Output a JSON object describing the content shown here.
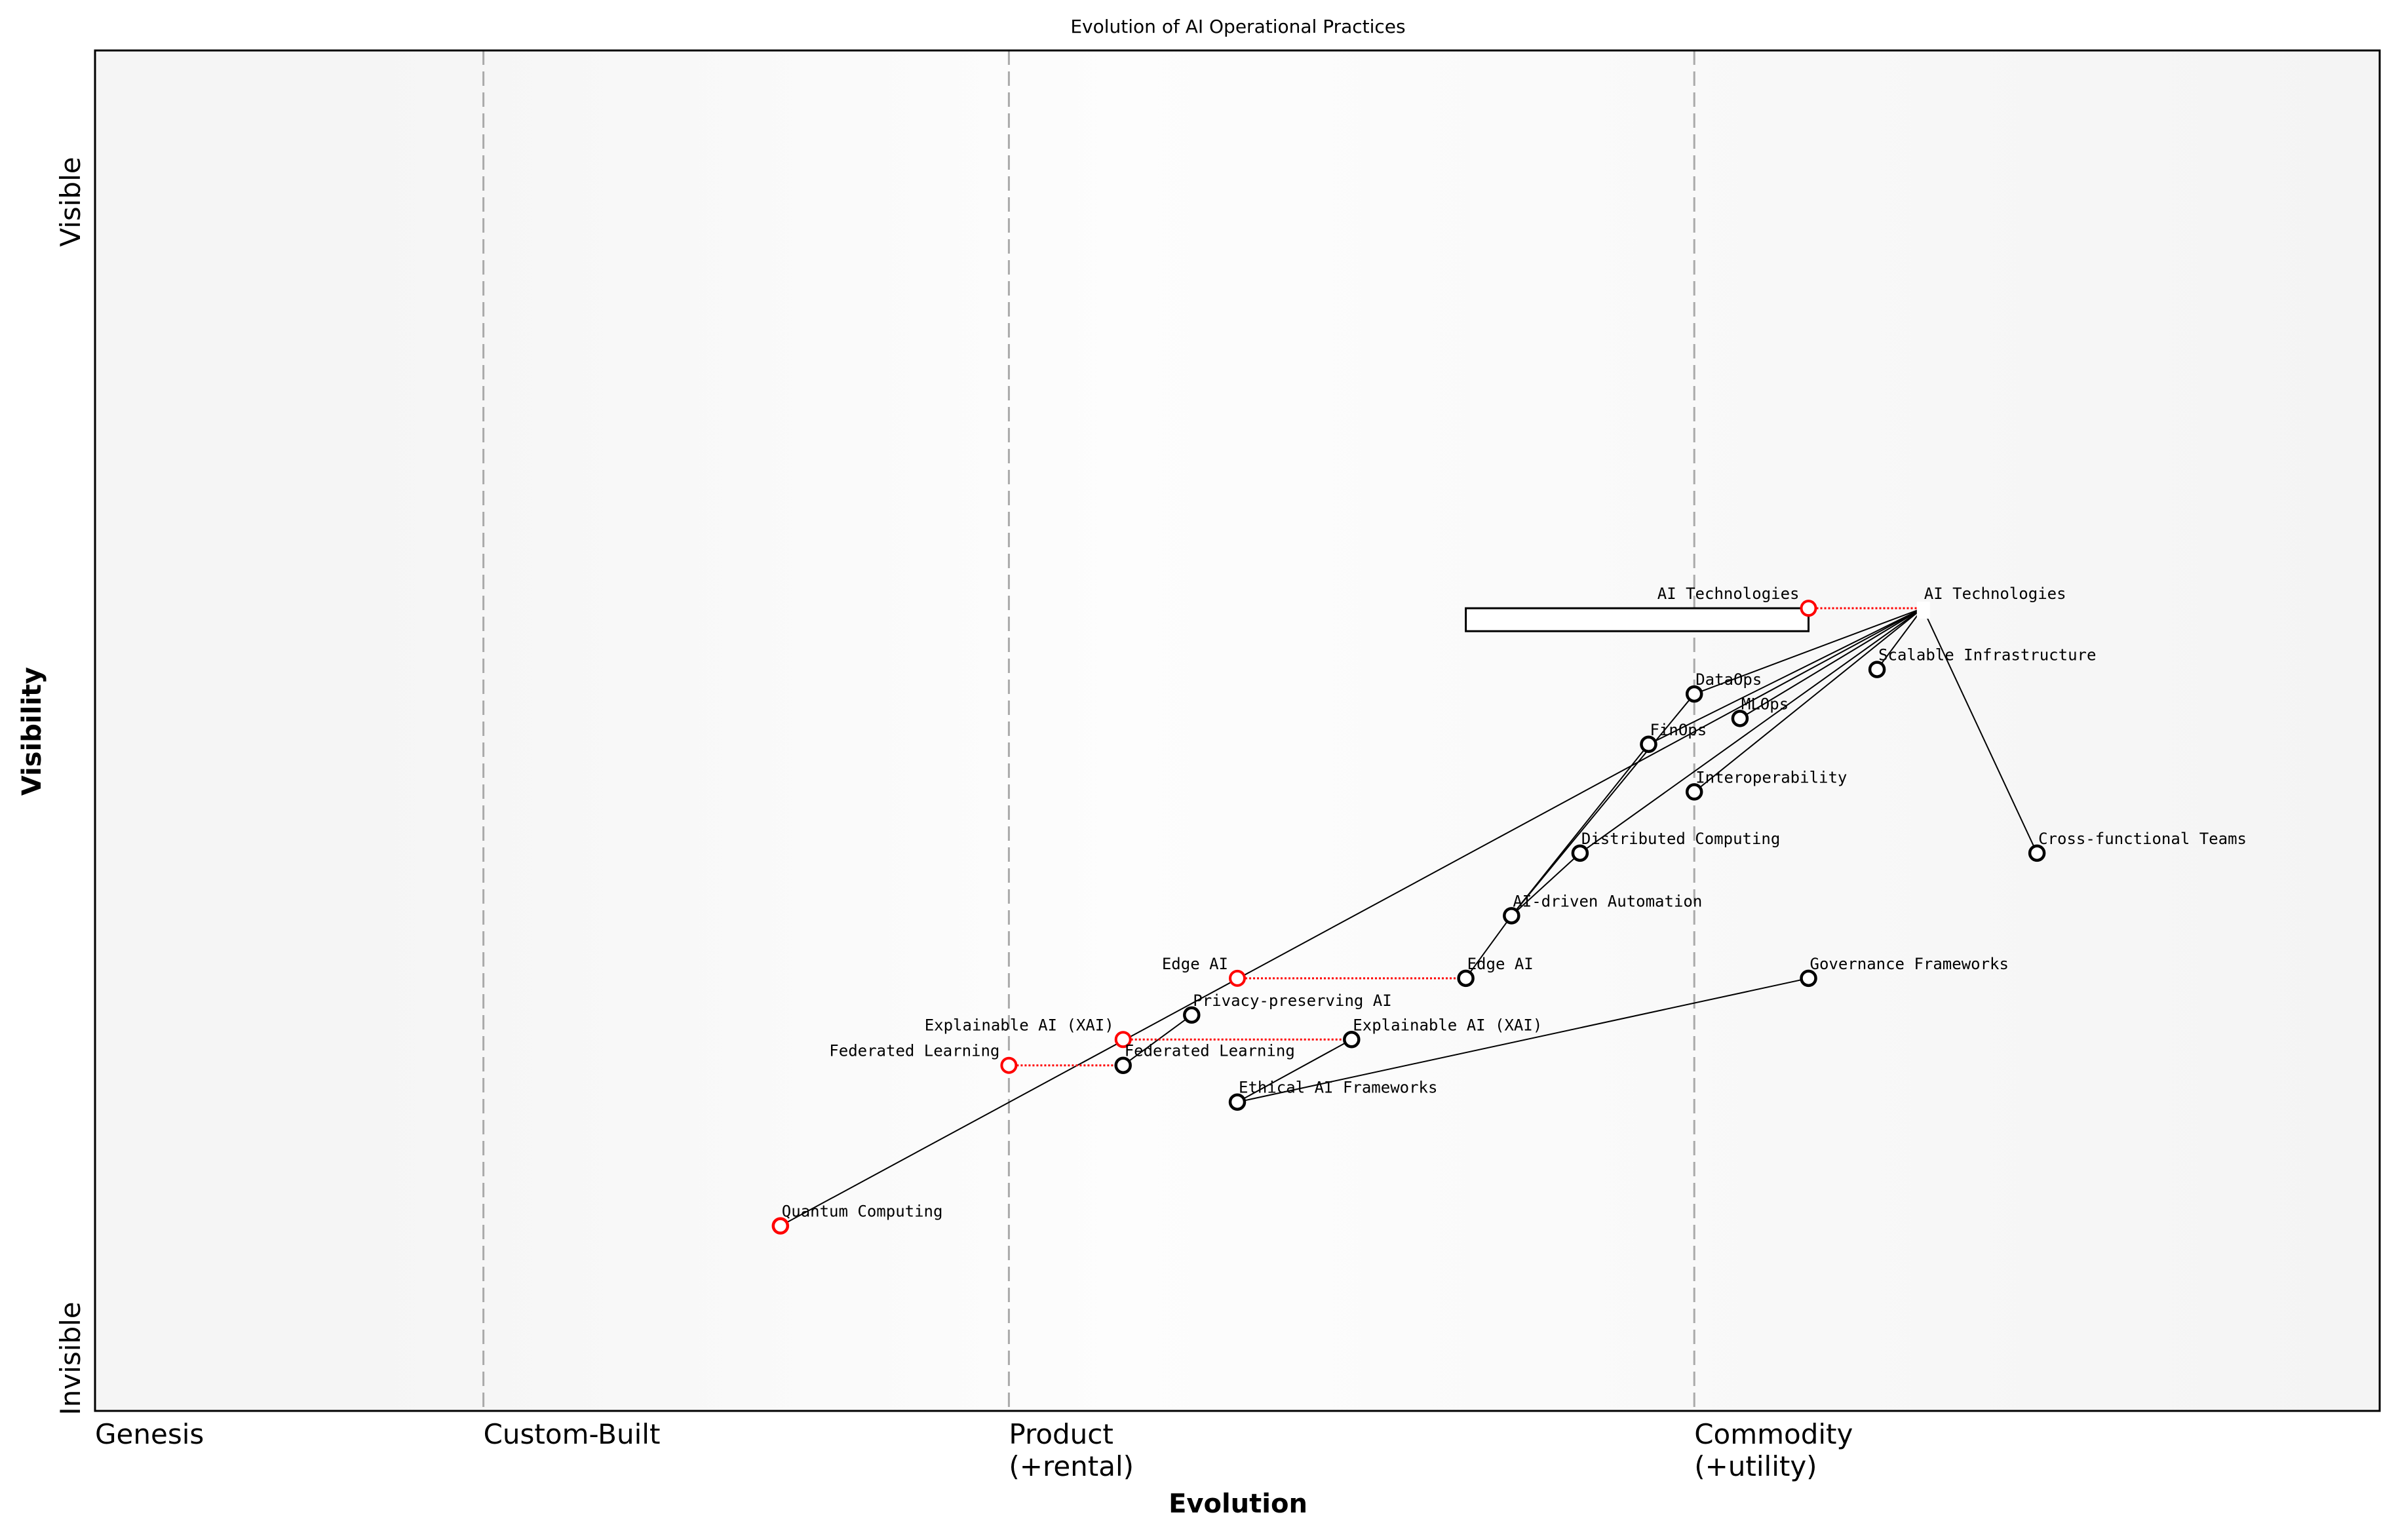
{
  "chart_data": {
    "type": "scatter",
    "subtype": "wardley-map",
    "title": "Evolution of AI Operational Practices",
    "xlabel": "Evolution",
    "ylabel": "Visibility",
    "xlim": [
      0,
      1
    ],
    "ylim": [
      0,
      1
    ],
    "y_tick_labels": {
      "top": "Visible",
      "bottom": "Invisible"
    },
    "stages": [
      {
        "label": "Genesis",
        "at": 0.0
      },
      {
        "label": "Custom-Built",
        "at": 0.17
      },
      {
        "label": "Product",
        "label2": "(+rental)",
        "at": 0.4
      },
      {
        "label": "Commodity",
        "label2": "(+utility)",
        "at": 0.7
      }
    ],
    "stage_colors": [
      "#f5f5f5",
      "#fdfdfd",
      "#f5f5f5"
    ],
    "colors": {
      "component": "#000000",
      "evolved_from": "#ff0000",
      "divider": "#aaaaaa"
    },
    "components": [
      {
        "id": "ai",
        "name": "AI Technologies",
        "evolution": 0.8,
        "visibility": 0.59
      },
      {
        "id": "si",
        "name": "Scalable Infrastructure",
        "evolution": 0.78,
        "visibility": 0.545
      },
      {
        "id": "dataops",
        "name": "DataOps",
        "evolution": 0.7,
        "visibility": 0.527
      },
      {
        "id": "mlops",
        "name": "MLOps",
        "evolution": 0.72,
        "visibility": 0.509
      },
      {
        "id": "finops",
        "name": "FinOps",
        "evolution": 0.68,
        "visibility": 0.49
      },
      {
        "id": "interop",
        "name": "Interoperability",
        "evolution": 0.7,
        "visibility": 0.455
      },
      {
        "id": "dc",
        "name": "Distributed Computing",
        "evolution": 0.65,
        "visibility": 0.41
      },
      {
        "id": "cft",
        "name": "Cross-functional Teams",
        "evolution": 0.85,
        "visibility": 0.41
      },
      {
        "id": "aida",
        "name": "AI-driven Automation",
        "evolution": 0.62,
        "visibility": 0.364
      },
      {
        "id": "edge",
        "name": "Edge AI",
        "evolution": 0.6,
        "visibility": 0.318
      },
      {
        "id": "gov",
        "name": "Governance Frameworks",
        "evolution": 0.75,
        "visibility": 0.318
      },
      {
        "id": "ppai",
        "name": "Privacy-preserving AI",
        "evolution": 0.48,
        "visibility": 0.291
      },
      {
        "id": "xai",
        "name": "Explainable AI (XAI)",
        "evolution": 0.55,
        "visibility": 0.273
      },
      {
        "id": "fl",
        "name": "Federated Learning",
        "evolution": 0.45,
        "visibility": 0.254
      },
      {
        "id": "eaf",
        "name": "Ethical AI Frameworks",
        "evolution": 0.5,
        "visibility": 0.227
      },
      {
        "id": "qc",
        "name": "Quantum Computing",
        "evolution": 0.3,
        "visibility": 0.136,
        "evolved_marker": true
      }
    ],
    "evolutions": [
      {
        "id": "ai",
        "name": "AI Technologies",
        "from": 0.75,
        "to": 0.8,
        "visibility": 0.59
      },
      {
        "id": "edge",
        "name": "Edge AI",
        "from": 0.5,
        "to": 0.6,
        "visibility": 0.318
      },
      {
        "id": "xai",
        "name": "Explainable AI (XAI)",
        "from": 0.45,
        "to": 0.55,
        "visibility": 0.273
      },
      {
        "id": "fl",
        "name": "Federated Learning",
        "from": 0.4,
        "to": 0.45,
        "visibility": 0.254
      }
    ],
    "pipeline": {
      "evolution_start": 0.6,
      "evolution_end": 0.75,
      "visibility": 0.59
    },
    "links": [
      [
        "ai",
        "dataops"
      ],
      [
        "ai",
        "finops"
      ],
      [
        "ai",
        "mlops"
      ],
      [
        "ai",
        "interop"
      ],
      [
        "ai",
        "si"
      ],
      [
        "ai",
        "cft"
      ],
      [
        "ai",
        "dc"
      ],
      [
        "ai",
        "qc"
      ],
      [
        "dataops",
        "aida"
      ],
      [
        "finops",
        "aida"
      ],
      [
        "dc",
        "aida"
      ],
      [
        "aida",
        "edge"
      ],
      [
        "ppai",
        "fl"
      ],
      [
        "xai",
        "eaf"
      ],
      [
        "eaf",
        "gov"
      ]
    ]
  }
}
